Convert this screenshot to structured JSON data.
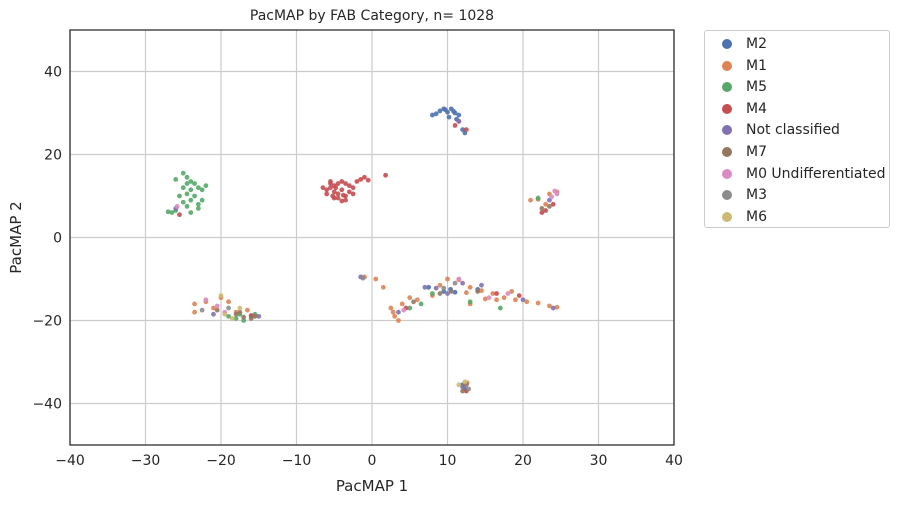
{
  "chart_data": {
    "type": "scatter",
    "title": "PacMAP by FAB Category, n= 1028",
    "xlabel": "PacMAP 1",
    "ylabel": "PacMAP 2",
    "xlim": [
      -40,
      40
    ],
    "ylim": [
      -50,
      50
    ],
    "xticks": [
      -40,
      -30,
      -20,
      -10,
      0,
      10,
      20,
      30,
      40
    ],
    "yticks": [
      -40,
      -20,
      0,
      20,
      40
    ],
    "xtick_labels": [
      "−40",
      "−30",
      "−20",
      "−10",
      "0",
      "10",
      "20",
      "30",
      "40"
    ],
    "ytick_labels": [
      "−40",
      "−20",
      "0",
      "20",
      "40"
    ],
    "grid": true,
    "legend": "outside-right",
    "series": [
      {
        "name": "M2",
        "color": "#4c72b0",
        "points": [
          [
            9.0,
            30.5
          ],
          [
            9.5,
            31.0
          ],
          [
            10.0,
            30.2
          ],
          [
            10.5,
            31.0
          ],
          [
            11.0,
            30.0
          ],
          [
            11.5,
            29.5
          ],
          [
            8.5,
            29.8
          ],
          [
            10.2,
            29.0
          ],
          [
            11.2,
            28.5
          ],
          [
            12.0,
            26.0
          ],
          [
            12.3,
            25.2
          ],
          [
            9.7,
            30.8
          ],
          [
            10.8,
            30.4
          ],
          [
            8.0,
            29.5
          ],
          [
            10.4,
            -12.5
          ],
          [
            11.0,
            -13.2
          ],
          [
            9.5,
            -13.0
          ],
          [
            12.3,
            -36.5
          ],
          [
            12.0,
            -35.5
          ],
          [
            7.5,
            -12.0
          ],
          [
            14.0,
            -12.5
          ]
        ]
      },
      {
        "name": "M1",
        "color": "#dd8452",
        "points": [
          [
            10.0,
            -10.0
          ],
          [
            11.5,
            -10.2
          ],
          [
            13.0,
            -12.0
          ],
          [
            14.5,
            -12.8
          ],
          [
            16.0,
            -13.5
          ],
          [
            17.5,
            -14.5
          ],
          [
            19.0,
            -15.0
          ],
          [
            20.5,
            -15.5
          ],
          [
            22.0,
            -15.8
          ],
          [
            23.5,
            -16.5
          ],
          [
            24.5,
            -16.8
          ],
          [
            15.0,
            -14.8
          ],
          [
            12.5,
            -13.3
          ],
          [
            9.0,
            -11.5
          ],
          [
            8.0,
            -14.0
          ],
          [
            6.0,
            -15.0
          ],
          [
            5.0,
            -14.5
          ],
          [
            4.0,
            -16.0
          ],
          [
            2.5,
            -17.0
          ],
          [
            3.0,
            -19.0
          ],
          [
            3.5,
            -20.0
          ],
          [
            2.8,
            -18.0
          ],
          [
            1.5,
            -12.0
          ],
          [
            0.5,
            -10.0
          ],
          [
            -1.0,
            -9.5
          ],
          [
            -20.0,
            -14.5
          ],
          [
            -22.0,
            -15.5
          ],
          [
            -19.0,
            -15.5
          ],
          [
            -16.5,
            -17.5
          ],
          [
            -18.0,
            -18.0
          ],
          [
            -21.0,
            -17.0
          ],
          [
            -23.5,
            -16.0
          ],
          [
            21.0,
            9.0
          ],
          [
            22.0,
            9.2
          ],
          [
            23.5,
            10.5
          ],
          [
            24.5,
            11.0
          ],
          [
            23.0,
            8.0
          ],
          [
            13.0,
            -16.0
          ],
          [
            16.5,
            -15.0
          ],
          [
            18.5,
            -13.0
          ],
          [
            -23.5,
            -18.0
          ],
          [
            12.6,
            -35.0
          ]
        ]
      },
      {
        "name": "M5",
        "color": "#55a868",
        "points": [
          [
            -25.0,
            15.5
          ],
          [
            -24.5,
            14.5
          ],
          [
            -24.0,
            13.5
          ],
          [
            -23.5,
            13.0
          ],
          [
            -23.0,
            12.0
          ],
          [
            -24.0,
            11.5
          ],
          [
            -25.0,
            12.0
          ],
          [
            -24.5,
            10.5
          ],
          [
            -23.5,
            10.0
          ],
          [
            -24.0,
            9.0
          ],
          [
            -23.0,
            8.0
          ],
          [
            -25.0,
            8.5
          ],
          [
            -24.5,
            7.5
          ],
          [
            -26.0,
            6.5
          ],
          [
            -26.5,
            6.0
          ],
          [
            -27.0,
            6.2
          ],
          [
            -24.0,
            6.0
          ],
          [
            -22.5,
            9.0
          ],
          [
            -22.0,
            12.5
          ],
          [
            -22.5,
            11.5
          ],
          [
            -26.0,
            14.0
          ],
          [
            -25.5,
            10.0
          ],
          [
            -23.0,
            7.0
          ],
          [
            -24.5,
            13.0
          ],
          [
            -17.0,
            -20.0
          ],
          [
            -18.0,
            -19.5
          ],
          [
            -16.0,
            -19.0
          ],
          [
            -15.5,
            -18.5
          ],
          [
            -17.5,
            -18.5
          ],
          [
            -19.0,
            -19.0
          ],
          [
            5.0,
            -17.0
          ],
          [
            6.5,
            -16.0
          ],
          [
            8.0,
            -13.5
          ],
          [
            17.0,
            -17.0
          ],
          [
            22.0,
            9.5
          ],
          [
            13.0,
            -15.5
          ]
        ]
      },
      {
        "name": "M4",
        "color": "#c44e52",
        "points": [
          [
            -5.5,
            13.0
          ],
          [
            -5.0,
            12.5
          ],
          [
            -4.5,
            13.0
          ],
          [
            -4.0,
            13.5
          ],
          [
            -3.5,
            13.0
          ],
          [
            -5.5,
            12.0
          ],
          [
            -6.0,
            11.5
          ],
          [
            -5.0,
            11.0
          ],
          [
            -4.5,
            10.5
          ],
          [
            -4.0,
            11.5
          ],
          [
            -3.0,
            11.0
          ],
          [
            -2.5,
            10.5
          ],
          [
            -3.5,
            10.0
          ],
          [
            -4.5,
            9.5
          ],
          [
            -5.0,
            9.5
          ],
          [
            -6.0,
            10.5
          ],
          [
            -6.5,
            12.0
          ],
          [
            -5.5,
            13.5
          ],
          [
            -3.0,
            12.5
          ],
          [
            -2.0,
            13.5
          ],
          [
            -1.5,
            14.0
          ],
          [
            -1.0,
            14.5
          ],
          [
            -3.5,
            9.0
          ],
          [
            -4.0,
            8.8
          ],
          [
            -2.5,
            12.0
          ],
          [
            -4.8,
            12.0
          ],
          [
            1.8,
            15.0
          ],
          [
            -0.5,
            13.8
          ],
          [
            -3.8,
            10.2
          ],
          [
            -5.2,
            10.0
          ],
          [
            23.0,
            6.5
          ],
          [
            22.5,
            6.0
          ],
          [
            24.0,
            8.0
          ],
          [
            11.5,
            28.0
          ],
          [
            12.5,
            26.0
          ],
          [
            11.0,
            27.0
          ],
          [
            19.5,
            -14.0
          ],
          [
            16.5,
            -13.5
          ],
          [
            4.5,
            -17.0
          ],
          [
            -16.0,
            -18.8
          ],
          [
            -25.5,
            5.5
          ],
          [
            12.5,
            -37.0
          ]
        ]
      },
      {
        "name": "Not classified",
        "color": "#8172b3",
        "points": [
          [
            -26.0,
            7.0
          ],
          [
            -21.0,
            -18.5
          ],
          [
            -15.0,
            -19.0
          ],
          [
            -1.5,
            -9.5
          ],
          [
            7.0,
            -12.0
          ],
          [
            8.5,
            -12.2
          ],
          [
            10.0,
            -13.5
          ],
          [
            12.0,
            -11.0
          ],
          [
            14.5,
            -11.5
          ],
          [
            20.0,
            -15.0
          ],
          [
            24.0,
            -17.0
          ],
          [
            3.5,
            -18.0
          ],
          [
            12.0,
            -36.0
          ],
          [
            23.5,
            9.0
          ],
          [
            11.5,
            28.0
          ]
        ]
      },
      {
        "name": "M7",
        "color": "#937860",
        "points": [
          [
            -18.0,
            -18.5
          ],
          [
            -17.0,
            -19.2
          ],
          [
            -16.0,
            -19.5
          ],
          [
            -15.5,
            -19.0
          ],
          [
            -17.5,
            -18.0
          ],
          [
            -20.5,
            -17.5
          ],
          [
            12.0,
            -37.0
          ],
          [
            12.5,
            -35.5
          ],
          [
            22.5,
            7.0
          ],
          [
            23.5,
            7.5
          ],
          [
            5.5,
            -15.5
          ],
          [
            10.5,
            -13.0
          ],
          [
            9.0,
            -13.5
          ],
          [
            14.0,
            -13.0
          ]
        ]
      },
      {
        "name": "M0 Undifferentiated",
        "color": "#da8bc3",
        "points": [
          [
            -25.8,
            7.5
          ],
          [
            -22.0,
            -15.0
          ],
          [
            -20.5,
            -16.5
          ],
          [
            -19.5,
            -18.0
          ],
          [
            24.5,
            10.5
          ],
          [
            23.8,
            9.8
          ],
          [
            24.2,
            11.2
          ],
          [
            15.5,
            -14.5
          ],
          [
            18.0,
            -13.5
          ],
          [
            11.5,
            -10.0
          ],
          [
            4.2,
            -17.5
          ]
        ]
      },
      {
        "name": "M3",
        "color": "#8c8c8c",
        "points": [
          [
            -19.0,
            -17.0
          ],
          [
            -22.5,
            -17.5
          ],
          [
            -1.2,
            -9.8
          ],
          [
            11.0,
            -11.0
          ],
          [
            9.5,
            -12.2
          ],
          [
            12.8,
            -36.5
          ]
        ]
      },
      {
        "name": "M6",
        "color": "#ccb974",
        "points": [
          [
            -20.0,
            -14.0
          ],
          [
            -17.5,
            -17.0
          ],
          [
            -19.5,
            -18.5
          ],
          [
            -18.5,
            -19.5
          ],
          [
            11.5,
            -35.5
          ],
          [
            12.3,
            -34.8
          ]
        ]
      }
    ]
  }
}
